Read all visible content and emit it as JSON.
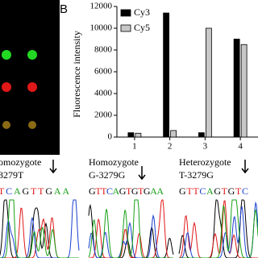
{
  "panel_label": "B",
  "chart_data": {
    "type": "bar",
    "ylabel": "Fluorescence intensity",
    "categories": [
      "1",
      "2",
      "3",
      "4"
    ],
    "series": [
      {
        "name": "Cy3",
        "color": "#000000",
        "values": [
          400,
          11400,
          400,
          9000
        ]
      },
      {
        "name": "Cy5",
        "color": "#c8c8c8",
        "values": [
          350,
          600,
          10000,
          8500
        ]
      }
    ],
    "ylim": [
      0,
      12000
    ],
    "yticks": [
      0,
      2000,
      4000,
      6000,
      8000,
      10000,
      12000
    ],
    "legend": "upper-left"
  },
  "sequences": [
    {
      "title": "omozygote",
      "subtitle": "3279T",
      "bases": "TCAGTTGAA"
    },
    {
      "title": "Homozygote",
      "subtitle": "G-3279G",
      "bases": "GTTCAGTGTGAA"
    },
    {
      "title": "Heterozygote",
      "subtitle": "T-3279G",
      "bases": "GTTCAGTGTC"
    }
  ]
}
